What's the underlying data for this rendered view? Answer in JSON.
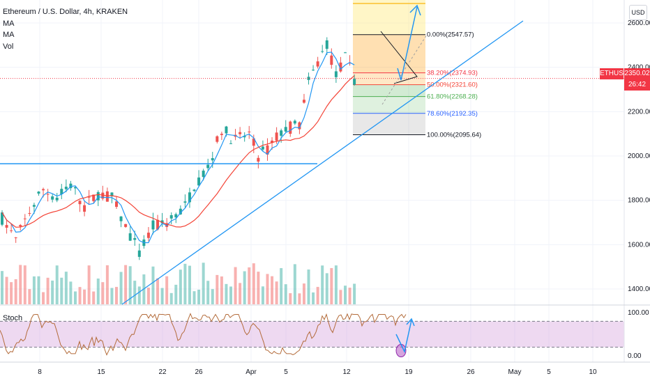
{
  "header": {
    "title": "Ethereum / U.S. Dollar, 4h, KRAKEN",
    "indicators": [
      "MA",
      "MA",
      "Vol"
    ]
  },
  "currency_button": "USD",
  "symbol_badge": "ETHUSD",
  "last_price": "2350.02",
  "countdown": "26:42",
  "stoch_label": "Stoch",
  "colors": {
    "up": "#26a69a",
    "down": "#ef5350",
    "ma_fast": "#2196f3",
    "ma_slow": "#f44336",
    "trendline": "#2196f3",
    "stoch_line": "#b36b3a",
    "stoch_band": "#e1bee7",
    "price_line": "#f23645"
  },
  "chart_data": [
    {
      "type": "candlestick",
      "title": "Ethereum / U.S. Dollar, 4h, KRAKEN",
      "x_ticks": [
        "8",
        "15",
        "22",
        "26",
        "Apr",
        "5",
        "12",
        "19",
        "26",
        "May",
        "5",
        "10"
      ],
      "y_ticks": [
        1400,
        1600,
        1800,
        2000,
        2200,
        2400,
        2600
      ],
      "ylim": [
        1330,
        2650
      ],
      "series_outline": [
        [
          0,
          1720
        ],
        [
          3,
          1620
        ],
        [
          6,
          1750
        ],
        [
          9,
          1850
        ],
        [
          12,
          1810
        ],
        [
          15,
          1870
        ],
        [
          18,
          1770
        ],
        [
          21,
          1830
        ],
        [
          24,
          1810
        ],
        [
          27,
          1680
        ],
        [
          30,
          1560
        ],
        [
          33,
          1680
        ],
        [
          36,
          1700
        ],
        [
          40,
          1770
        ],
        [
          42,
          1870
        ],
        [
          45,
          1950
        ],
        [
          48,
          2120
        ],
        [
          51,
          2070
        ],
        [
          54,
          2100
        ],
        [
          56,
          2000
        ],
        [
          58,
          2030
        ],
        [
          61,
          2110
        ],
        [
          63,
          2130
        ],
        [
          65,
          2140
        ],
        [
          67,
          2330
        ],
        [
          69,
          2420
        ],
        [
          71,
          2510
        ],
        [
          73,
          2360
        ],
        [
          75,
          2440
        ],
        [
          77,
          2350
        ]
      ],
      "fib_levels": [
        {
          "label": "0.00%",
          "price": "2547.57"
        },
        {
          "label": "38.20%",
          "price": "2374.93"
        },
        {
          "label": "50.00%",
          "price": "2321.60"
        },
        {
          "label": "61.80%",
          "price": "2268.28"
        },
        {
          "label": "78.60%",
          "price": "2192.35"
        },
        {
          "label": "100.00%",
          "price": "2095.64"
        }
      ],
      "horizontal_level": 1965,
      "current_price": 2350.02
    },
    {
      "type": "line",
      "title": "Stoch",
      "y_ticks": [
        0,
        100
      ],
      "band": [
        20,
        80
      ],
      "ylim": [
        -10,
        105
      ]
    }
  ]
}
